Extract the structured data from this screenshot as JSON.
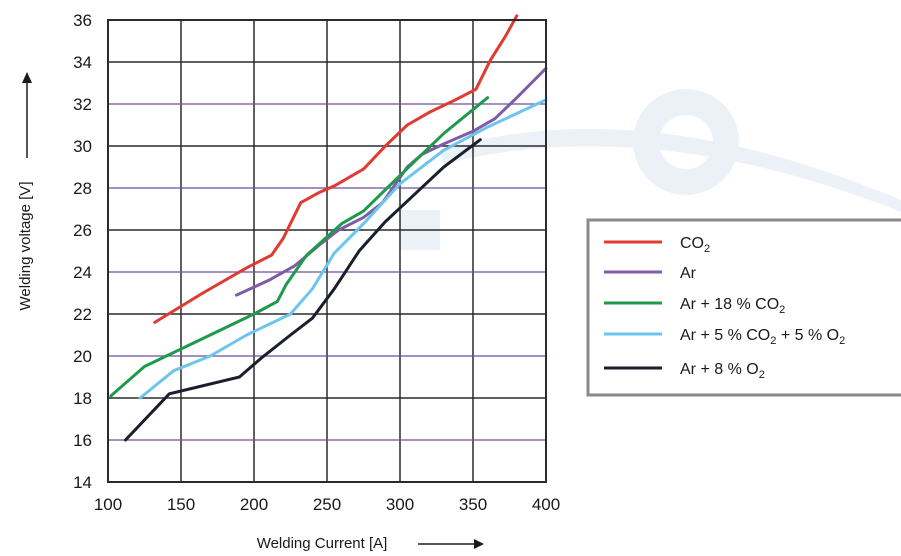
{
  "chart_data": {
    "type": "line",
    "xlabel": "Welding Current [A]",
    "ylabel": "Welding voltage [V]",
    "xlim": [
      100,
      400
    ],
    "ylim": [
      14,
      36
    ],
    "x_ticks": [
      "100",
      "150",
      "200",
      "250",
      "300",
      "350",
      "400"
    ],
    "y_ticks": [
      "14",
      "16",
      "18",
      "20",
      "22",
      "24",
      "26",
      "28",
      "30",
      "32",
      "34",
      "36"
    ],
    "grid": true,
    "legend_position": "right",
    "series": [
      {
        "name": "CO2",
        "name_parts": [
          {
            "text": "CO",
            "sub": false
          },
          {
            "text": "2",
            "sub": true
          }
        ],
        "color": "#e03a32",
        "points": [
          [
            132,
            21.6
          ],
          [
            165,
            23.0
          ],
          [
            195,
            24.2
          ],
          [
            212,
            24.8
          ],
          [
            220,
            25.6
          ],
          [
            232,
            27.3
          ],
          [
            245,
            27.8
          ],
          [
            255,
            28.1
          ],
          [
            275,
            28.9
          ],
          [
            290,
            30.0
          ],
          [
            305,
            31.0
          ],
          [
            320,
            31.6
          ],
          [
            338,
            32.2
          ],
          [
            352,
            32.7
          ],
          [
            362,
            34.1
          ],
          [
            372,
            35.2
          ],
          [
            380,
            36.2
          ]
        ]
      },
      {
        "name": "Ar",
        "name_parts": [
          {
            "text": "Ar",
            "sub": false
          }
        ],
        "color": "#7e5ca8",
        "points": [
          [
            188,
            22.9
          ],
          [
            210,
            23.6
          ],
          [
            228,
            24.3
          ],
          [
            245,
            25.3
          ],
          [
            258,
            26.0
          ],
          [
            275,
            26.6
          ],
          [
            288,
            27.3
          ],
          [
            305,
            29.0
          ],
          [
            315,
            29.6
          ],
          [
            330,
            30.1
          ],
          [
            350,
            30.7
          ],
          [
            365,
            31.3
          ],
          [
            380,
            32.3
          ],
          [
            400,
            33.7
          ]
        ]
      },
      {
        "name": "Ar + 18 % CO2",
        "name_parts": [
          {
            "text": "Ar + 18 % CO",
            "sub": false
          },
          {
            "text": "2",
            "sub": true
          }
        ],
        "color": "#1f9a4a",
        "points": [
          [
            102,
            18.1
          ],
          [
            125,
            19.5
          ],
          [
            155,
            20.5
          ],
          [
            185,
            21.5
          ],
          [
            200,
            22.0
          ],
          [
            216,
            22.6
          ],
          [
            222,
            23.4
          ],
          [
            236,
            24.8
          ],
          [
            260,
            26.3
          ],
          [
            275,
            26.9
          ],
          [
            300,
            28.6
          ],
          [
            330,
            30.6
          ],
          [
            360,
            32.3
          ]
        ]
      },
      {
        "name": "Ar + 5 % CO2 + 5 % O2",
        "name_parts": [
          {
            "text": "Ar + 5 % CO",
            "sub": false
          },
          {
            "text": "2",
            "sub": true
          },
          {
            "text": " + 5 % O",
            "sub": false
          },
          {
            "text": "2",
            "sub": true
          }
        ],
        "color": "#6cc5ec",
        "points": [
          [
            122,
            18.0
          ],
          [
            145,
            19.3
          ],
          [
            170,
            20.0
          ],
          [
            195,
            21.0
          ],
          [
            225,
            22.0
          ],
          [
            240,
            23.2
          ],
          [
            255,
            24.9
          ],
          [
            265,
            25.6
          ],
          [
            275,
            26.3
          ],
          [
            300,
            28.2
          ],
          [
            330,
            29.8
          ],
          [
            360,
            30.9
          ],
          [
            400,
            32.2
          ]
        ]
      },
      {
        "name": "Ar + 8 % O2",
        "name_parts": [
          {
            "text": "Ar + 8 % O",
            "sub": false
          },
          {
            "text": "2",
            "sub": true
          }
        ],
        "color": "#1b1e2d",
        "points": [
          [
            112,
            16.0
          ],
          [
            142,
            18.2
          ],
          [
            160,
            18.5
          ],
          [
            190,
            19.0
          ],
          [
            205,
            19.9
          ],
          [
            225,
            21.0
          ],
          [
            240,
            21.8
          ],
          [
            255,
            23.2
          ],
          [
            272,
            25.0
          ],
          [
            290,
            26.4
          ],
          [
            310,
            27.7
          ],
          [
            330,
            29.0
          ],
          [
            355,
            30.3
          ]
        ]
      }
    ]
  }
}
